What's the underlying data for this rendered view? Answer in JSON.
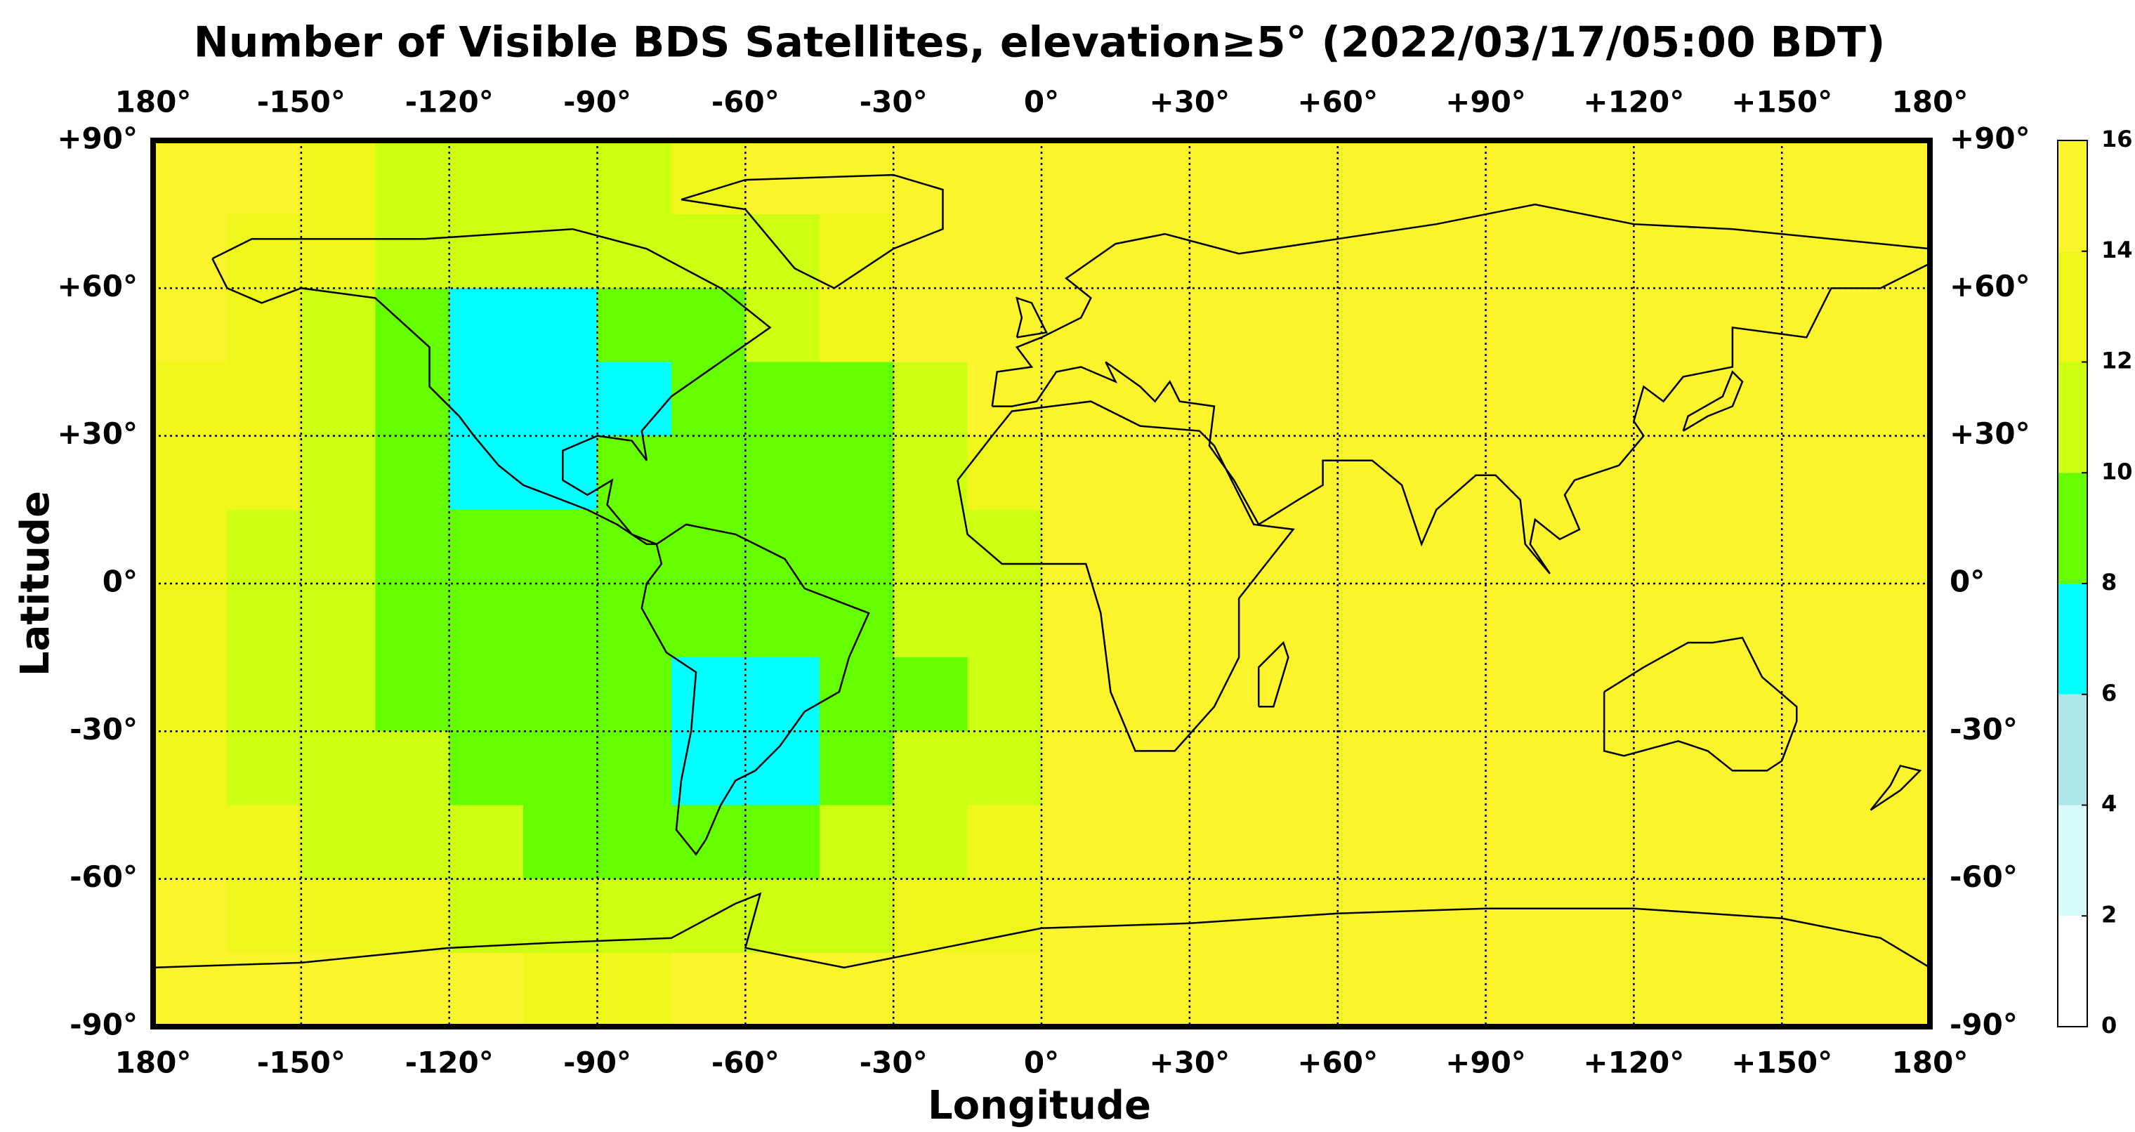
{
  "chart_data": {
    "type": "map",
    "title": "Number of Visible BDS Satellites, elevation≥5° (2022/03/17/05:00 BDT)",
    "x_label": "Longitude",
    "y_label": "Latitude",
    "xlim": [
      -180,
      180
    ],
    "ylim": [
      -90,
      90
    ],
    "xticks": [
      {
        "value": -180,
        "label": "180°"
      },
      {
        "value": -150,
        "label": "-150°"
      },
      {
        "value": -120,
        "label": "-120°"
      },
      {
        "value": -90,
        "label": "-90°"
      },
      {
        "value": -60,
        "label": "-60°"
      },
      {
        "value": -30,
        "label": "-30°"
      },
      {
        "value": 0,
        "label": "0°"
      },
      {
        "value": 30,
        "label": "+30°"
      },
      {
        "value": 60,
        "label": "+60°"
      },
      {
        "value": 90,
        "label": "+90°"
      },
      {
        "value": 120,
        "label": "+120°"
      },
      {
        "value": 150,
        "label": "+150°"
      },
      {
        "value": 180,
        "label": "180°"
      }
    ],
    "yticks": [
      {
        "value": 90,
        "label": "+90°"
      },
      {
        "value": 60,
        "label": "+60°"
      },
      {
        "value": 30,
        "label": "+30°"
      },
      {
        "value": 0,
        "label": "0°"
      },
      {
        "value": -30,
        "label": "-30°"
      },
      {
        "value": -60,
        "label": "-60°"
      },
      {
        "value": -90,
        "label": "-90°"
      }
    ],
    "grid": true,
    "values": [
      [
        15,
        15,
        13,
        11,
        11,
        11,
        11,
        13,
        15,
        15,
        15,
        15,
        15,
        15,
        15,
        15,
        15,
        15,
        15,
        15,
        15,
        15,
        15,
        15
      ],
      [
        15,
        13,
        13,
        11,
        11,
        11,
        11,
        11,
        11,
        13,
        15,
        15,
        15,
        15,
        15,
        15,
        15,
        15,
        15,
        15,
        15,
        15,
        15,
        15
      ],
      [
        15,
        13,
        11,
        9,
        7,
        7,
        9,
        9,
        11,
        13,
        15,
        15,
        15,
        15,
        15,
        15,
        15,
        15,
        15,
        15,
        15,
        15,
        15,
        15
      ],
      [
        13,
        13,
        11,
        9,
        7,
        7,
        7,
        9,
        9,
        9,
        11,
        15,
        15,
        15,
        15,
        15,
        15,
        15,
        15,
        15,
        15,
        15,
        15,
        15
      ],
      [
        13,
        13,
        11,
        9,
        7,
        7,
        9,
        9,
        9,
        9,
        11,
        13,
        15,
        15,
        15,
        15,
        15,
        15,
        15,
        15,
        15,
        15,
        15,
        15
      ],
      [
        13,
        11,
        11,
        9,
        9,
        9,
        9,
        9,
        9,
        9,
        11,
        11,
        15,
        15,
        15,
        15,
        15,
        15,
        15,
        15,
        15,
        15,
        15,
        15
      ],
      [
        13,
        11,
        11,
        9,
        9,
        9,
        9,
        9,
        9,
        9,
        11,
        11,
        15,
        15,
        15,
        15,
        15,
        15,
        15,
        15,
        15,
        15,
        15,
        15
      ],
      [
        13,
        11,
        11,
        9,
        9,
        9,
        9,
        7,
        7,
        9,
        9,
        11,
        15,
        15,
        15,
        15,
        15,
        15,
        15,
        15,
        15,
        15,
        15,
        15
      ],
      [
        13,
        11,
        11,
        11,
        9,
        9,
        9,
        7,
        7,
        9,
        11,
        11,
        15,
        15,
        15,
        15,
        15,
        15,
        15,
        15,
        15,
        15,
        15,
        15
      ],
      [
        13,
        13,
        11,
        11,
        11,
        9,
        9,
        9,
        9,
        11,
        11,
        13,
        15,
        15,
        15,
        15,
        15,
        15,
        15,
        15,
        15,
        15,
        15,
        15
      ],
      [
        15,
        13,
        13,
        13,
        11,
        11,
        11,
        11,
        11,
        11,
        13,
        13,
        15,
        15,
        15,
        15,
        15,
        15,
        15,
        15,
        15,
        15,
        15,
        15
      ],
      [
        15,
        15,
        15,
        15,
        15,
        13,
        13,
        15,
        15,
        15,
        15,
        15,
        15,
        15,
        15,
        15,
        15,
        15,
        15,
        15,
        15,
        15,
        15,
        15
      ]
    ],
    "colorbar": {
      "ticks": [
        0,
        2,
        4,
        6,
        8,
        10,
        12,
        14,
        16
      ],
      "colors": [
        "#ffffff",
        "#d6fbfb",
        "#ade6e6",
        "#00ffff",
        "#66ff00",
        "#ccff11",
        "#eef61a",
        "#fbf32b"
      ]
    }
  }
}
